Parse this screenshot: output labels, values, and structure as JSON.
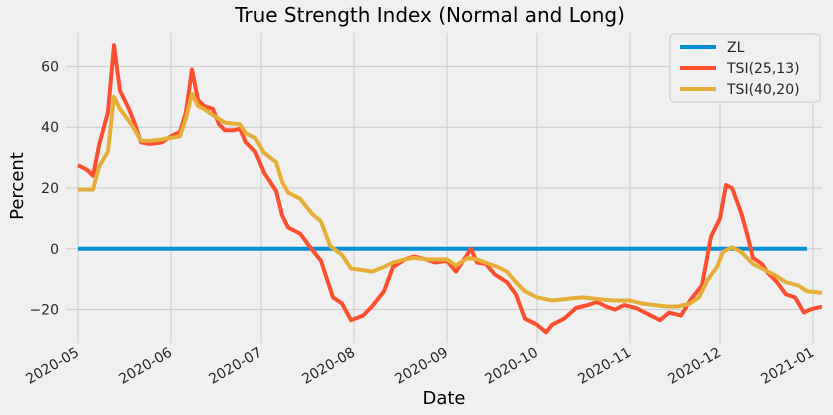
{
  "chart_data": {
    "type": "line",
    "title": "True Strength Index (Normal and Long)",
    "xlabel": "Date",
    "ylabel": "Percent",
    "xlim": [
      "2020-04-27",
      "2021-01-04"
    ],
    "ylim": [
      -31,
      71
    ],
    "xticks": [
      {
        "date": "2020-05-01",
        "label": "2020-05"
      },
      {
        "date": "2020-06-01",
        "label": "2020-06"
      },
      {
        "date": "2020-07-01",
        "label": "2020-07"
      },
      {
        "date": "2020-08-01",
        "label": "2020-08"
      },
      {
        "date": "2020-09-01",
        "label": "2020-09"
      },
      {
        "date": "2020-10-01",
        "label": "2020-10"
      },
      {
        "date": "2020-11-01",
        "label": "2020-11"
      },
      {
        "date": "2020-12-01",
        "label": "2020-12"
      },
      {
        "date": "2021-01-01",
        "label": "2021-01"
      }
    ],
    "yticks": [
      -20,
      0,
      20,
      40,
      60
    ],
    "grid": true,
    "legend_position": "top-right",
    "series": [
      {
        "name": "ZL",
        "color": "#008fd5",
        "points": [
          [
            "2020-05-01",
            0
          ],
          [
            "2020-12-30",
            0
          ]
        ]
      },
      {
        "name": "TSI(25,13)",
        "color": "#fc4f30",
        "points": [
          [
            "2020-05-01",
            27.5
          ],
          [
            "2020-05-04",
            26
          ],
          [
            "2020-05-06",
            24
          ],
          [
            "2020-05-08",
            34
          ],
          [
            "2020-05-11",
            45
          ],
          [
            "2020-05-13",
            67
          ],
          [
            "2020-05-15",
            52
          ],
          [
            "2020-05-18",
            46
          ],
          [
            "2020-05-20",
            41
          ],
          [
            "2020-05-22",
            35
          ],
          [
            "2020-05-25",
            34.5
          ],
          [
            "2020-05-29",
            35
          ],
          [
            "2020-06-01",
            37
          ],
          [
            "2020-06-04",
            38.5
          ],
          [
            "2020-06-06",
            45
          ],
          [
            "2020-06-08",
            59
          ],
          [
            "2020-06-10",
            49
          ],
          [
            "2020-06-12",
            47
          ],
          [
            "2020-06-15",
            46
          ],
          [
            "2020-06-17",
            41
          ],
          [
            "2020-06-19",
            39
          ],
          [
            "2020-06-22",
            39
          ],
          [
            "2020-06-24",
            39.5
          ],
          [
            "2020-06-26",
            35
          ],
          [
            "2020-06-29",
            32
          ],
          [
            "2020-07-02",
            25
          ],
          [
            "2020-07-06",
            19
          ],
          [
            "2020-07-08",
            11
          ],
          [
            "2020-07-10",
            7
          ],
          [
            "2020-07-14",
            5
          ],
          [
            "2020-07-17",
            1
          ],
          [
            "2020-07-21",
            -4
          ],
          [
            "2020-07-25",
            -16
          ],
          [
            "2020-07-28",
            -18
          ],
          [
            "2020-07-31",
            -23.5
          ],
          [
            "2020-08-04",
            -22
          ],
          [
            "2020-08-07",
            -19
          ],
          [
            "2020-08-11",
            -14
          ],
          [
            "2020-08-14",
            -6
          ],
          [
            "2020-08-18",
            -3.5
          ],
          [
            "2020-08-21",
            -2.5
          ],
          [
            "2020-08-25",
            -3.5
          ],
          [
            "2020-08-28",
            -4.5
          ],
          [
            "2020-09-01",
            -4
          ],
          [
            "2020-09-04",
            -7.5
          ],
          [
            "2020-09-07",
            -3
          ],
          [
            "2020-09-09",
            0
          ],
          [
            "2020-09-11",
            -4.5
          ],
          [
            "2020-09-14",
            -5
          ],
          [
            "2020-09-17",
            -8.5
          ],
          [
            "2020-09-21",
            -11
          ],
          [
            "2020-09-24",
            -15
          ],
          [
            "2020-09-27",
            -23
          ],
          [
            "2020-10-01",
            -25
          ],
          [
            "2020-10-04",
            -27.5
          ],
          [
            "2020-10-06",
            -25
          ],
          [
            "2020-10-10",
            -23
          ],
          [
            "2020-10-14",
            -19.5
          ],
          [
            "2020-10-18",
            -18.5
          ],
          [
            "2020-10-21",
            -17.5
          ],
          [
            "2020-10-24",
            -19
          ],
          [
            "2020-10-27",
            -20
          ],
          [
            "2020-10-30",
            -18.5
          ],
          [
            "2020-11-03",
            -19.5
          ],
          [
            "2020-11-06",
            -21
          ],
          [
            "2020-11-09",
            -22.5
          ],
          [
            "2020-11-11",
            -23.5
          ],
          [
            "2020-11-14",
            -21
          ],
          [
            "2020-11-18",
            -22
          ],
          [
            "2020-11-21",
            -17
          ],
          [
            "2020-11-25",
            -12
          ],
          [
            "2020-11-28",
            4
          ],
          [
            "2020-12-01",
            10
          ],
          [
            "2020-12-03",
            21
          ],
          [
            "2020-12-05",
            20
          ],
          [
            "2020-12-08",
            12
          ],
          [
            "2020-12-10",
            5
          ],
          [
            "2020-12-12",
            -3
          ],
          [
            "2020-12-15",
            -5
          ],
          [
            "2020-12-17",
            -8
          ],
          [
            "2020-12-20",
            -11
          ],
          [
            "2020-12-23",
            -15
          ],
          [
            "2020-12-26",
            -16
          ],
          [
            "2020-12-29",
            -21
          ],
          [
            "2020-12-31",
            -20
          ],
          [
            "2021-01-04",
            -19
          ]
        ]
      },
      {
        "name": "TSI(40,20)",
        "color": "#e5ae38",
        "points": [
          [
            "2020-05-01",
            19.5
          ],
          [
            "2020-05-06",
            19.5
          ],
          [
            "2020-05-08",
            27
          ],
          [
            "2020-05-11",
            32
          ],
          [
            "2020-05-13",
            50
          ],
          [
            "2020-05-15",
            46
          ],
          [
            "2020-05-18",
            42
          ],
          [
            "2020-05-20",
            39
          ],
          [
            "2020-05-22",
            35.5
          ],
          [
            "2020-05-25",
            35.5
          ],
          [
            "2020-05-29",
            36
          ],
          [
            "2020-06-01",
            36.5
          ],
          [
            "2020-06-04",
            37
          ],
          [
            "2020-06-06",
            43
          ],
          [
            "2020-06-08",
            51
          ],
          [
            "2020-06-10",
            47
          ],
          [
            "2020-06-12",
            46
          ],
          [
            "2020-06-15",
            44
          ],
          [
            "2020-06-19",
            41.5
          ],
          [
            "2020-06-24",
            41
          ],
          [
            "2020-06-26",
            38
          ],
          [
            "2020-06-29",
            36.5
          ],
          [
            "2020-07-02",
            31.5
          ],
          [
            "2020-07-06",
            28.5
          ],
          [
            "2020-07-08",
            22
          ],
          [
            "2020-07-10",
            18.5
          ],
          [
            "2020-07-14",
            16.5
          ],
          [
            "2020-07-18",
            11.5
          ],
          [
            "2020-07-21",
            9
          ],
          [
            "2020-07-24",
            1
          ],
          [
            "2020-07-28",
            -2
          ],
          [
            "2020-07-31",
            -6.5
          ],
          [
            "2020-08-04",
            -7
          ],
          [
            "2020-08-07",
            -7.5
          ],
          [
            "2020-08-11",
            -6
          ],
          [
            "2020-08-14",
            -4.5
          ],
          [
            "2020-08-18",
            -3.5
          ],
          [
            "2020-08-21",
            -3
          ],
          [
            "2020-08-25",
            -3.5
          ],
          [
            "2020-08-28",
            -3.5
          ],
          [
            "2020-09-01",
            -3.5
          ],
          [
            "2020-09-04",
            -5.5
          ],
          [
            "2020-09-08",
            -3
          ],
          [
            "2020-09-11",
            -3.5
          ],
          [
            "2020-09-15",
            -5
          ],
          [
            "2020-09-18",
            -6
          ],
          [
            "2020-09-21",
            -7.5
          ],
          [
            "2020-09-24",
            -11
          ],
          [
            "2020-09-27",
            -14
          ],
          [
            "2020-10-01",
            -16
          ],
          [
            "2020-10-06",
            -17
          ],
          [
            "2020-10-11",
            -16.5
          ],
          [
            "2020-10-16",
            -16
          ],
          [
            "2020-10-21",
            -16.5
          ],
          [
            "2020-10-26",
            -17
          ],
          [
            "2020-11-01",
            -17
          ],
          [
            "2020-11-05",
            -18
          ],
          [
            "2020-11-09",
            -18.5
          ],
          [
            "2020-11-13",
            -19
          ],
          [
            "2020-11-17",
            -19
          ],
          [
            "2020-11-21",
            -18
          ],
          [
            "2020-11-24",
            -16
          ],
          [
            "2020-11-27",
            -10
          ],
          [
            "2020-11-30",
            -6
          ],
          [
            "2020-12-02",
            -1
          ],
          [
            "2020-12-05",
            0.5
          ],
          [
            "2020-12-08",
            -1
          ],
          [
            "2020-12-10",
            -3
          ],
          [
            "2020-12-12",
            -5
          ],
          [
            "2020-12-16",
            -7
          ],
          [
            "2020-12-19",
            -8.5
          ],
          [
            "2020-12-23",
            -11
          ],
          [
            "2020-12-27",
            -12
          ],
          [
            "2020-12-30",
            -14
          ],
          [
            "2021-01-04",
            -14.5
          ]
        ]
      }
    ]
  }
}
